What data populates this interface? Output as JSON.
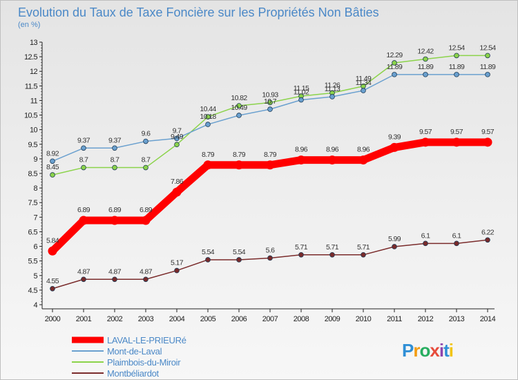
{
  "chart_data": {
    "type": "line",
    "title": "Evolution du Taux de Taxe Foncière sur les Propriétés Non Bâties",
    "subtitle": "(en %)",
    "xlabel": "",
    "ylabel": "",
    "x": [
      "2000",
      "2001",
      "2002",
      "2003",
      "2004",
      "2005",
      "2006",
      "2007",
      "2008",
      "2009",
      "2010",
      "2011",
      "2012",
      "2013",
      "2014"
    ],
    "ylim": [
      4,
      13
    ],
    "yticks": [
      "4",
      "4.5",
      "5",
      "5.5",
      "6",
      "6.5",
      "7",
      "7.5",
      "8",
      "8.5",
      "9",
      "9.5",
      "10",
      "10.5",
      "11",
      "11.5",
      "12",
      "12.5",
      "13"
    ],
    "legend_position": "bottom-left",
    "series": [
      {
        "name": "LAVAL-LE-PRIEURé",
        "color": "#ff0000",
        "values": [
          5.84,
          6.89,
          6.89,
          6.89,
          7.86,
          8.79,
          8.79,
          8.79,
          8.96,
          8.96,
          8.96,
          9.39,
          9.57,
          9.57,
          9.57
        ],
        "labels": [
          "5.84",
          "6.89",
          "6.89",
          "6.89",
          "7.86",
          "8.79",
          "8.79",
          "8.79",
          "8.96",
          "8.96",
          "8.96",
          "9.39",
          "9.57",
          "9.57",
          "9.57"
        ]
      },
      {
        "name": "Mont-de-Laval",
        "color": "#6aa0cf",
        "values": [
          8.92,
          9.37,
          9.37,
          9.6,
          9.7,
          10.18,
          10.49,
          10.7,
          11.02,
          11.13,
          11.34,
          11.89,
          11.89,
          11.89,
          11.89
        ],
        "labels": [
          "8.92",
          "9.37",
          "9.37",
          "9.6",
          "9.7",
          "10.18",
          "10.49",
          "10.7",
          "11.02",
          "11.13",
          "11.34",
          "11.89",
          "11.89",
          "11.89",
          "11.89"
        ]
      },
      {
        "name": "Plaimbois-du-Miroir",
        "color": "#8bd34a",
        "values": [
          8.45,
          8.7,
          8.7,
          8.7,
          9.49,
          10.44,
          10.82,
          10.93,
          11.15,
          11.26,
          11.49,
          12.29,
          12.42,
          12.54,
          12.54
        ],
        "labels": [
          "8.45",
          "8.7",
          "8.7",
          "8.7",
          "9.49",
          "10.44",
          "10.82",
          "10.93",
          "11.15",
          "11.26",
          "11.49",
          "12.29",
          "12.42",
          "12.54",
          "12.54"
        ]
      },
      {
        "name": "Montbéliardot",
        "color": "#7a2b2b",
        "values": [
          4.55,
          4.87,
          4.87,
          4.87,
          5.17,
          5.54,
          5.54,
          5.6,
          5.71,
          5.71,
          5.71,
          5.99,
          6.1,
          6.1,
          6.22
        ],
        "labels": [
          "4.55",
          "4.87",
          "4.87",
          "4.87",
          "5.17",
          "5.54",
          "5.54",
          "5.6",
          "5.71",
          "5.71",
          "5.71",
          "5.99",
          "6.1",
          "6.1",
          "6.22"
        ]
      }
    ]
  },
  "logo": {
    "letters": [
      "P",
      "r",
      "o",
      "x",
      "i",
      "t",
      "i"
    ],
    "colors": [
      "#2f8fd6",
      "#f39c12",
      "#27ae60",
      "#e74c3c",
      "#8e44ad",
      "#2f8fd6",
      "#f1c40f"
    ]
  }
}
